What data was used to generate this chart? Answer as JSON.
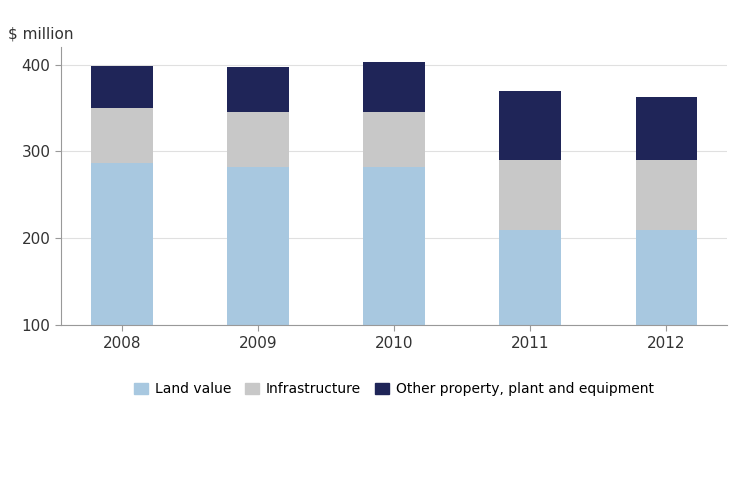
{
  "years": [
    "2008",
    "2009",
    "2010",
    "2011",
    "2012"
  ],
  "land_value": [
    287,
    282,
    282,
    210,
    210
  ],
  "infrastructure": [
    63,
    63,
    63,
    80,
    80
  ],
  "other_property": [
    48,
    52,
    58,
    80,
    73
  ],
  "colors": {
    "land_value": "#A8C8E0",
    "infrastructure": "#C8C8C8",
    "other_property": "#1F2558"
  },
  "ylabel": "$ million",
  "ylim_min": 100,
  "ylim_max": 420,
  "yticks": [
    100,
    200,
    300,
    400
  ],
  "legend_labels": [
    "Land value",
    "Infrastructure",
    "Other property, plant and equipment"
  ],
  "bar_width": 0.45,
  "figsize": [
    7.42,
    4.87
  ],
  "dpi": 100
}
